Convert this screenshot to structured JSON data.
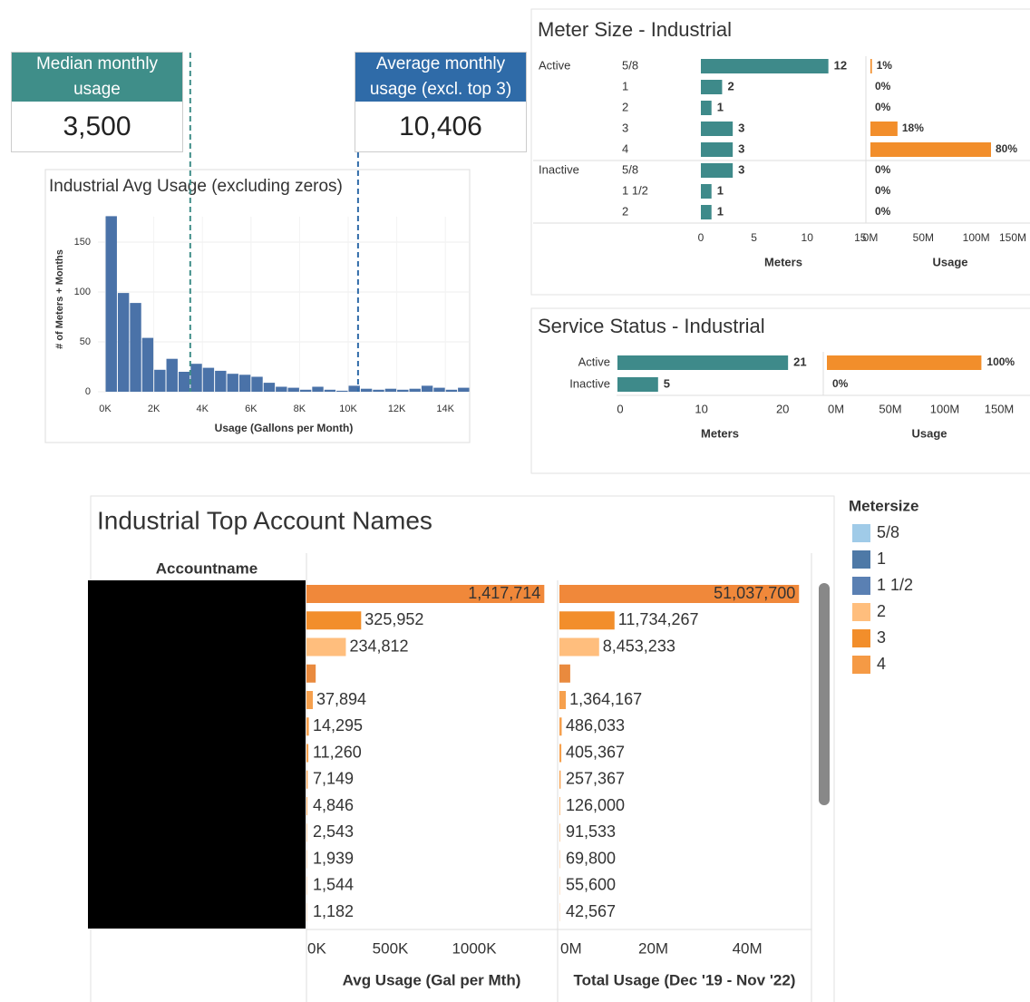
{
  "kpis": [
    {
      "label": "Median monthly usage",
      "value": 3500,
      "value_label": "3,500",
      "color": "#3f8e89"
    },
    {
      "label": "Average monthly usage (excl. top 3)",
      "value": 10406,
      "value_label": "10,406",
      "color": "#2f6ba8"
    }
  ],
  "chart_data": [
    {
      "type": "histogram",
      "title": "Industrial Avg Usage (excluding zeros)",
      "xlabel": "Usage (Gallons per Month)",
      "ylabel": "# of Meters + Months",
      "bins": [
        0,
        500,
        1000,
        1500,
        2000,
        2500,
        3000,
        3500,
        4000,
        4500,
        5000,
        5500,
        6000,
        6500,
        7000,
        7500,
        8000,
        8500,
        9000,
        9500,
        10000,
        10500,
        11000,
        11500,
        12000,
        12500,
        13000,
        13500,
        14000,
        14500,
        15000
      ],
      "counts": [
        176,
        99,
        89,
        54,
        22,
        33,
        20,
        28,
        24,
        21,
        18,
        17,
        15,
        9,
        5,
        4,
        2,
        5,
        2,
        1,
        6,
        3,
        2,
        3,
        2,
        3,
        6,
        4,
        2,
        4
      ],
      "color": "#4a72a8",
      "xlim": [
        -300,
        15000
      ],
      "xticks": [
        {
          "value": 0,
          "label": "0K"
        },
        {
          "value": 2000,
          "label": "2K"
        },
        {
          "value": 4000,
          "label": "4K"
        },
        {
          "value": 6000,
          "label": "6K"
        },
        {
          "value": 8000,
          "label": "8K"
        },
        {
          "value": 10000,
          "label": "10K"
        },
        {
          "value": 12000,
          "label": "12K"
        },
        {
          "value": 14000,
          "label": "14K"
        }
      ],
      "ylim": [
        0,
        175
      ],
      "yticks": [
        0,
        50,
        100,
        150
      ],
      "grid": true
    },
    {
      "type": "meter_size",
      "title": "Meter Size - Industrial",
      "groups": [
        {
          "name": "Active",
          "categories": [
            "5/8",
            "1",
            "2",
            "3",
            "4"
          ],
          "meters": [
            12,
            2,
            1,
            3,
            3
          ],
          "usage": [
            1400000,
            0,
            0,
            25600000,
            114000000
          ],
          "usage_labels": [
            "1%",
            "0%",
            "0%",
            "18%",
            "80%"
          ]
        },
        {
          "name": "Inactive",
          "categories": [
            "5/8",
            "1 1/2",
            "2"
          ],
          "meters": [
            3,
            1,
            1
          ],
          "usage": [
            0,
            0,
            0
          ],
          "usage_labels": [
            "0%",
            "0%",
            "0%"
          ]
        }
      ],
      "meters_axis": {
        "label": "Meters",
        "lim": [
          0,
          15.7
        ],
        "ticks": [
          0,
          5,
          10,
          15
        ]
      },
      "usage_axis": {
        "label": "Usage",
        "lim": [
          0,
          150000000
        ],
        "ticks": [
          {
            "value": 0,
            "label": "0M"
          },
          {
            "value": 50000000,
            "label": "50M"
          },
          {
            "value": 100000000,
            "label": "100M"
          },
          {
            "value": 150000000,
            "label": "150M"
          }
        ]
      },
      "colors": {
        "meters": "#3e8a8a",
        "usage": "#f28e2b"
      }
    },
    {
      "type": "service_status",
      "title": "Service Status - Industrial",
      "categories": [
        "Active",
        "Inactive"
      ],
      "meters": [
        21,
        5
      ],
      "usage": [
        142000000,
        0
      ],
      "usage_labels": [
        "100%",
        "0%"
      ],
      "meters_axis": {
        "label": "Meters",
        "lim": [
          0,
          25
        ],
        "ticks": [
          0,
          10,
          20
        ]
      },
      "usage_axis": {
        "label": "Usage",
        "lim": [
          0,
          150000000
        ],
        "ticks": [
          {
            "value": 0,
            "label": "0M"
          },
          {
            "value": 50000000,
            "label": "50M"
          },
          {
            "value": 100000000,
            "label": "100M"
          },
          {
            "value": 150000000,
            "label": "150M"
          }
        ]
      },
      "colors": {
        "meters": "#3e8a8a",
        "usage": "#f28e2b"
      }
    },
    {
      "type": "account_table",
      "title": "Industrial Top Account Names",
      "row_header": "Accountname",
      "avg": {
        "label": "Avg Usage (Gal per Mth)",
        "values": [
          1417714,
          325952,
          234812,
          55000,
          37894,
          14295,
          11260,
          7149,
          4846,
          2543,
          1939,
          1544,
          1182
        ],
        "value_labels": [
          "1,417,714",
          "325,952",
          "234,812",
          null,
          "37,894",
          "14,295",
          "11,260",
          "7,149",
          "4,846",
          "2,543",
          "1,939",
          "1,544",
          "1,182"
        ],
        "xlim": [
          0,
          1470000
        ],
        "xticks": [
          {
            "value": 0,
            "label": "0K"
          },
          {
            "value": 500000,
            "label": "500K"
          },
          {
            "value": 1000000,
            "label": "1000K"
          }
        ]
      },
      "total": {
        "label": "Total Usage (Dec '19 - Nov '22)",
        "values": [
          51037700,
          11734267,
          8453233,
          2300000,
          1364167,
          486033,
          405367,
          257367,
          126000,
          91533,
          69800,
          55600,
          42567
        ],
        "value_labels": [
          "51,037,700",
          "11,734,267",
          "8,453,233",
          null,
          "1,364,167",
          "486,033",
          "405,367",
          "257,367",
          "126,000",
          "91,533",
          "69,800",
          "55,600",
          "42,567"
        ],
        "xlim": [
          0,
          53500000
        ],
        "xticks": [
          {
            "value": 0,
            "label": "0M"
          },
          {
            "value": 20000000,
            "label": "20M"
          },
          {
            "value": 40000000,
            "label": "40M"
          }
        ]
      },
      "colors": [
        "#f0883a",
        "#f28e2b",
        "#ffbe7d",
        "#e98a3e",
        "#f6a04d",
        "#f6a04d",
        "#f6a04d",
        "#f6a04d",
        "#f6a04d",
        "#f6a04d",
        "#f6a04d",
        "#f6a04d",
        "#f6a04d"
      ],
      "legend": {
        "title": "Metersize",
        "items": [
          {
            "name": "5/8",
            "color": "#a0cbe8"
          },
          {
            "name": "1",
            "color": "#4e79a7"
          },
          {
            "name": "1 1/2",
            "color": "#5a80b3"
          },
          {
            "name": "2",
            "color": "#ffbe7d"
          },
          {
            "name": "3",
            "color": "#f28e2b"
          },
          {
            "name": "4",
            "color": "#f59a45"
          }
        ]
      }
    }
  ]
}
